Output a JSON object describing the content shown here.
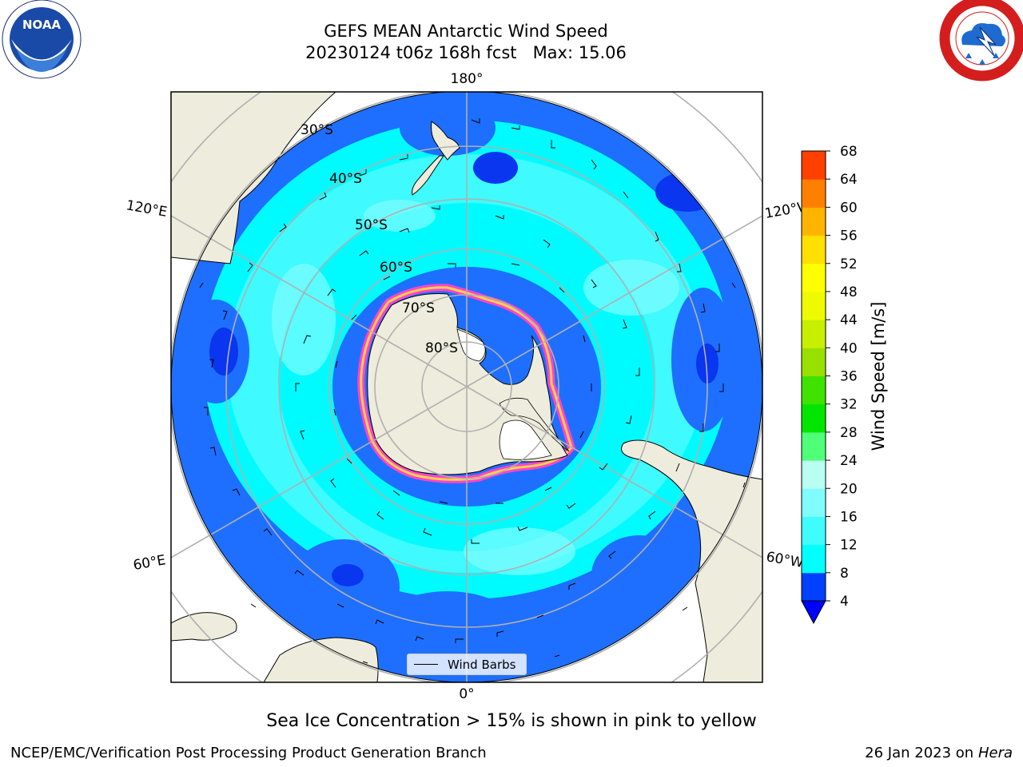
{
  "header": {
    "title_line1": "GEFS MEAN Antarctic Wind Speed",
    "title_line2": "20230124 t06z 168h fcst   Max: 15.06"
  },
  "logos": {
    "left": {
      "name": "noaa-logo",
      "text": "NOAA",
      "ring_text": "NATIONAL OCEANIC AND ATMOSPHERIC ADMINISTRATION · U.S. DEPARTMENT OF COMMERCE"
    },
    "right": {
      "name": "nws-logo",
      "ring_text": "NATIONAL WEATHER SERVICE"
    }
  },
  "map": {
    "projection": "south-polar-stereographic",
    "longitude_labels": {
      "top": "180°",
      "bottom": "0°",
      "upper_left": "120°E",
      "upper_right": "120°W",
      "lower_left": "60°E",
      "lower_right": "60°W"
    },
    "latitude_labels": [
      "30°S",
      "40°S",
      "50°S",
      "60°S",
      "70°S",
      "80°S"
    ],
    "legend_label": "Wind Barbs",
    "colors": {
      "land": "#eeecdc",
      "ice": "#ffffff",
      "grid": "#b0b0b0",
      "sea_ice_edge": "#ff44cc"
    }
  },
  "colorbar": {
    "label": "Wind Speed [m/s]",
    "ticks": [
      "4",
      "8",
      "12",
      "16",
      "20",
      "24",
      "28",
      "32",
      "36",
      "40",
      "44",
      "48",
      "52",
      "56",
      "60",
      "64",
      "68"
    ],
    "colors": [
      "#0040ff",
      "#00ffff",
      "#3ffcff",
      "#80fcff",
      "#b8fff2",
      "#50ff78",
      "#00e600",
      "#3fe200",
      "#98e000",
      "#c8ee00",
      "#eefb00",
      "#ffff00",
      "#ffe000",
      "#ffb400",
      "#ff8000",
      "#ff4000",
      "#ff0000"
    ],
    "under_color": "#0000ff"
  },
  "note": "Sea Ice Concentration > 15% is shown in pink to yellow",
  "footer": {
    "left": "NCEP/EMC/Verification Post Processing Product Generation Branch",
    "right_date": "26 Jan 2023 on ",
    "right_host": "Hera"
  }
}
